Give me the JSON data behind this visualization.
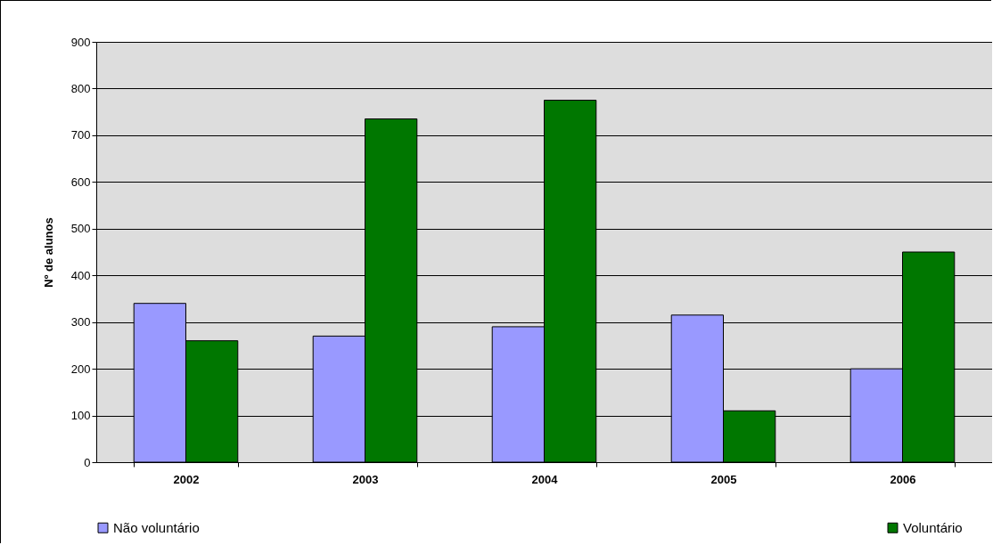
{
  "chart_data": {
    "type": "bar",
    "ylabel": "Nº de alunos",
    "categories": [
      "2002",
      "2003",
      "2004",
      "2005",
      "2006"
    ],
    "series": [
      {
        "name": "Não voluntário",
        "color": "#9999ff",
        "values": [
          340,
          270,
          290,
          315,
          200
        ]
      },
      {
        "name": "Voluntário",
        "color": "#007700",
        "values": [
          260,
          735,
          775,
          110,
          450
        ]
      }
    ],
    "ylim": [
      0,
      900
    ],
    "yticks": [
      0,
      100,
      200,
      300,
      400,
      500,
      600,
      700,
      800,
      900
    ],
    "grid": "y",
    "legend": "bottom"
  }
}
